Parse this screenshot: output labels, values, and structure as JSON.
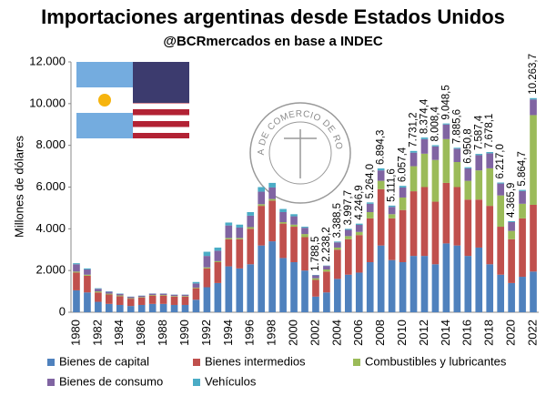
{
  "chart_data": {
    "type": "stacked_bar",
    "title": "Importaciones argentinas desde Estados Unidos",
    "subtitle": "@BCRmercados en base a INDEC",
    "y_label": "Millones de dólares",
    "logo_text": "BOLSA DE COMERCIO DE ROSARIO",
    "categories": [
      "1980",
      null,
      "1982",
      null,
      "1984",
      null,
      "1986",
      null,
      "1988",
      null,
      "1990",
      null,
      "1992",
      null,
      "1994",
      null,
      "1996",
      null,
      "1998",
      null,
      "2000",
      null,
      "2002",
      null,
      "2004",
      null,
      "2006",
      null,
      "2008",
      null,
      "2010",
      null,
      "2012",
      null,
      "2014",
      null,
      "2016",
      null,
      "2018",
      null,
      "2020",
      null,
      "2022"
    ],
    "series": [
      {
        "name": "Bienes de capital",
        "color": "#4f81bd",
        "values": [
          1050,
          950,
          500,
          400,
          350,
          300,
          350,
          400,
          400,
          350,
          350,
          600,
          1200,
          1400,
          2200,
          2100,
          2300,
          3200,
          3400,
          2600,
          2400,
          2000,
          750,
          950,
          1600,
          1800,
          1900,
          2400,
          3200,
          2500,
          2400,
          2700,
          2700,
          2300,
          3300,
          3200,
          2700,
          3100,
          2300,
          1800,
          1400,
          1700,
          1950
        ]
      },
      {
        "name": "Bienes intermedios",
        "color": "#c0504d",
        "values": [
          850,
          800,
          450,
          450,
          420,
          350,
          350,
          400,
          400,
          400,
          400,
          550,
          900,
          1000,
          1300,
          1400,
          1700,
          1900,
          1950,
          1650,
          1700,
          1600,
          800,
          1000,
          1400,
          1700,
          1800,
          2100,
          2700,
          2000,
          2500,
          3100,
          3300,
          3000,
          2900,
          2800,
          2700,
          2300,
          2800,
          2300,
          2100,
          2800,
          3200
        ]
      },
      {
        "name": "Combustibles y lubricantes",
        "color": "#9bbb59",
        "values": [
          50,
          50,
          50,
          40,
          40,
          30,
          30,
          30,
          30,
          30,
          30,
          30,
          50,
          50,
          60,
          60,
          80,
          80,
          80,
          70,
          100,
          150,
          80,
          100,
          100,
          150,
          150,
          300,
          400,
          200,
          600,
          1200,
          1600,
          2000,
          2100,
          1200,
          900,
          1400,
          1800,
          1500,
          400,
          700,
          4300
        ]
      },
      {
        "name": "Bienes de consumo",
        "color": "#8064a2",
        "values": [
          350,
          250,
          120,
          90,
          70,
          60,
          60,
          60,
          60,
          60,
          60,
          200,
          550,
          500,
          600,
          500,
          550,
          600,
          550,
          480,
          400,
          300,
          140,
          170,
          250,
          300,
          340,
          400,
          500,
          350,
          480,
          650,
          700,
          650,
          700,
          640,
          600,
          730,
          720,
          570,
          420,
          610,
          750
        ]
      },
      {
        "name": "Vehículos",
        "color": "#4bacc6",
        "values": [
          50,
          50,
          30,
          20,
          20,
          10,
          10,
          10,
          10,
          10,
          10,
          70,
          200,
          150,
          140,
          140,
          170,
          220,
          220,
          150,
          100,
          50,
          18.5,
          18.2,
          38.5,
          47.7,
          56.9,
          64,
          94.3,
          61.6,
          77.4,
          81.2,
          74.4,
          58.4,
          48.5,
          45.6,
          50.8,
          57.4,
          58.1,
          47,
          45.9,
          54.7,
          63.7
        ]
      }
    ],
    "totals": [
      null,
      null,
      null,
      null,
      null,
      null,
      null,
      null,
      null,
      null,
      null,
      null,
      null,
      null,
      null,
      null,
      null,
      null,
      null,
      null,
      null,
      null,
      1788.5,
      2238.2,
      3388.5,
      3997.7,
      4246.9,
      5264,
      6894.3,
      5111.6,
      6057.4,
      7731.2,
      8374.4,
      8008.4,
      9048.5,
      7885.6,
      6950.8,
      7587.4,
      7678.1,
      6217,
      4365.9,
      5864.7,
      10263.7
    ],
    "total_labels": [
      null,
      null,
      null,
      null,
      null,
      null,
      null,
      null,
      null,
      null,
      null,
      null,
      null,
      null,
      null,
      null,
      null,
      null,
      null,
      null,
      null,
      null,
      "1.788,5",
      "2.238,2",
      "3.388,5",
      "3.997,7",
      "4.246,9",
      "5.264,0",
      "6.894,3",
      "5.111,6",
      "6.057,4",
      "7.731,2",
      "8.374,4",
      "8.008,4",
      "9.048,5",
      "7.885,6",
      "6.950,8",
      "7.587,4",
      "7.678,1",
      "6.217,0",
      "4.365,9",
      "5.864,7",
      "10.263,7"
    ],
    "ylim": [
      0,
      12000
    ],
    "yticks": [
      0,
      {
        "value": 2000,
        "label": "2.000"
      },
      {
        "value": 4000,
        "label": "4.000"
      },
      {
        "value": 6000,
        "label": "6.000"
      },
      {
        "value": 8000,
        "label": "8.000"
      },
      {
        "value": 10000,
        "label": "10.000"
      },
      {
        "value": 12000,
        "label": "12.000"
      }
    ],
    "grid": false
  }
}
